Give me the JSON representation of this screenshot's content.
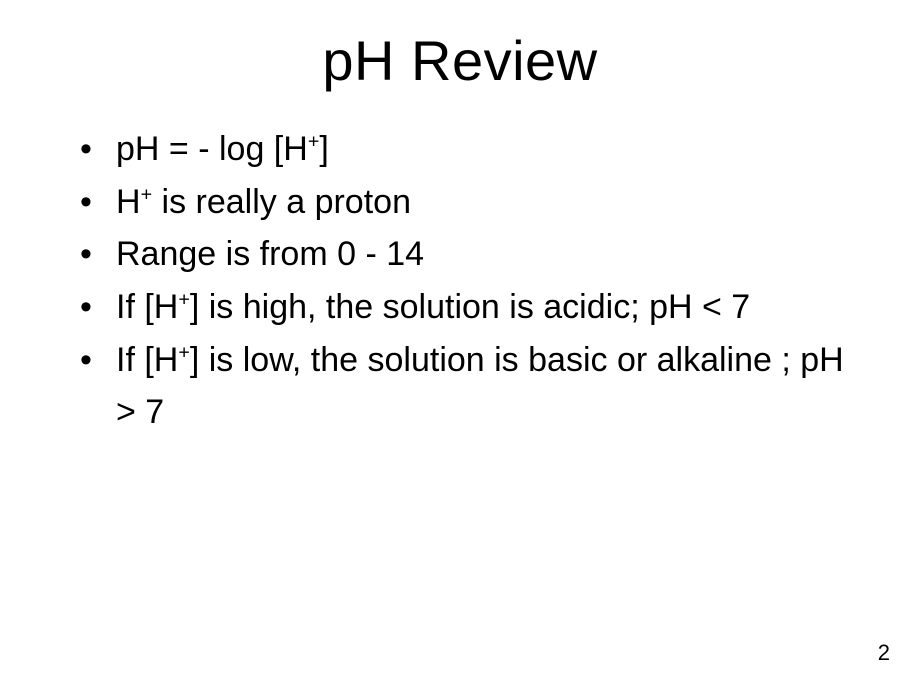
{
  "slide": {
    "title": "pH Review",
    "page_number": "2",
    "bullets": [
      {
        "pre": "pH = - log [H",
        "sup": "+",
        "post": "]"
      },
      {
        "pre": "H",
        "sup": "+",
        "post": "  is really a proton"
      },
      {
        "pre": "Range is from 0 - 14",
        "sup": "",
        "post": ""
      },
      {
        "pre": "If [H",
        "sup": "+",
        "post": "] is high, the solution is acidic; pH < 7"
      },
      {
        "pre": "If [H",
        "sup": "+",
        "post": "] is low, the solution is basic or alkaline ; pH > 7"
      }
    ]
  },
  "style": {
    "background_color": "#ffffff",
    "text_color": "#000000",
    "title_fontsize": 56,
    "body_fontsize": 34,
    "pagenum_fontsize": 22,
    "font_family": "Arial"
  }
}
